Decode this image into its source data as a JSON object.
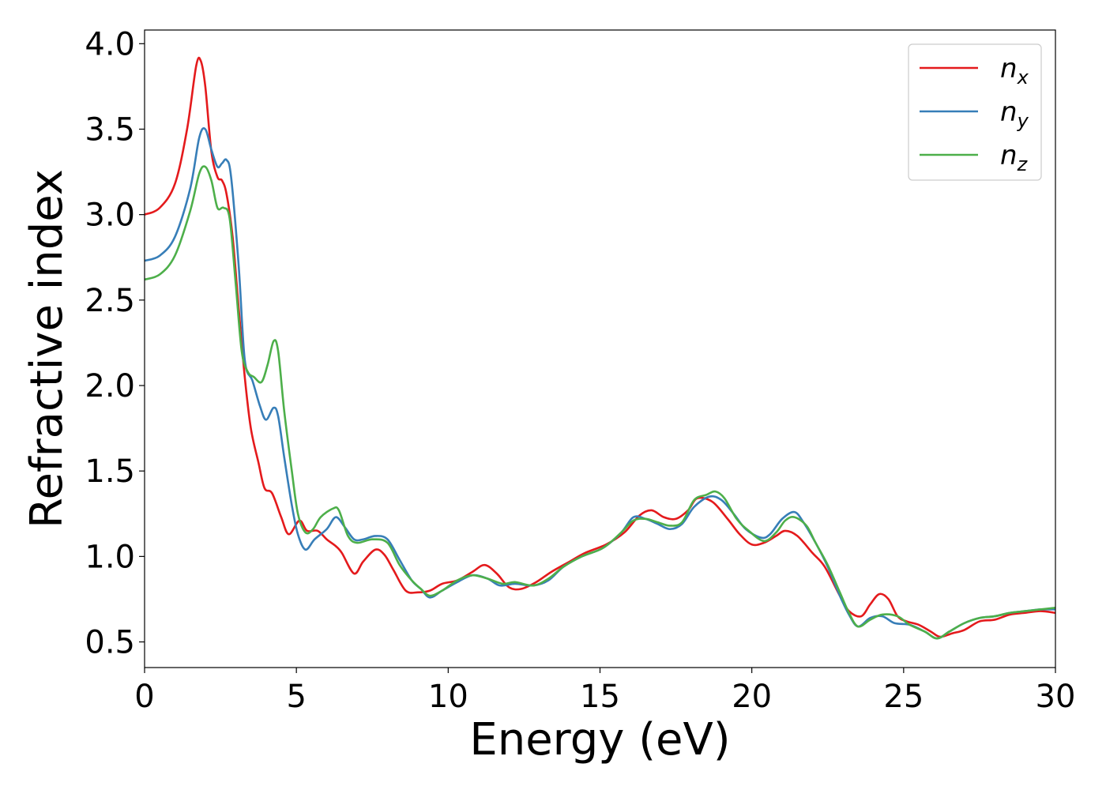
{
  "chart_data": {
    "type": "line",
    "title": "",
    "xlabel": "Energy (eV)",
    "ylabel": "Refractive index",
    "xlim": [
      0,
      30
    ],
    "ylim": [
      0.35,
      4.08
    ],
    "xticks": [
      0,
      5,
      10,
      15,
      20,
      25,
      30
    ],
    "xtick_labels": [
      "0",
      "5",
      "10",
      "15",
      "20",
      "25",
      "30"
    ],
    "yticks": [
      0.5,
      1.0,
      1.5,
      2.0,
      2.5,
      3.0,
      3.5,
      4.0
    ],
    "ytick_labels": [
      "0.5",
      "1.0",
      "1.5",
      "2.0",
      "2.5",
      "3.0",
      "3.5",
      "4.0"
    ],
    "grid": false,
    "legend_position": "top-right",
    "series": [
      {
        "name": "n",
        "subscript": "x",
        "color": "#e41a1c",
        "points": [
          [
            0,
            3.0
          ],
          [
            0.5,
            3.04
          ],
          [
            1.0,
            3.18
          ],
          [
            1.4,
            3.5
          ],
          [
            1.7,
            3.87
          ],
          [
            1.85,
            3.9
          ],
          [
            2.0,
            3.75
          ],
          [
            2.2,
            3.37
          ],
          [
            2.4,
            3.22
          ],
          [
            2.55,
            3.2
          ],
          [
            2.7,
            3.12
          ],
          [
            2.9,
            2.87
          ],
          [
            3.1,
            2.45
          ],
          [
            3.3,
            2.05
          ],
          [
            3.5,
            1.75
          ],
          [
            3.75,
            1.55
          ],
          [
            3.95,
            1.4
          ],
          [
            4.2,
            1.37
          ],
          [
            4.5,
            1.23
          ],
          [
            4.75,
            1.13
          ],
          [
            5.1,
            1.21
          ],
          [
            5.35,
            1.15
          ],
          [
            5.7,
            1.15
          ],
          [
            6.0,
            1.1
          ],
          [
            6.3,
            1.06
          ],
          [
            6.5,
            1.02
          ],
          [
            6.9,
            0.9
          ],
          [
            7.2,
            0.97
          ],
          [
            7.6,
            1.04
          ],
          [
            7.9,
            1.01
          ],
          [
            8.2,
            0.92
          ],
          [
            8.6,
            0.8
          ],
          [
            9.0,
            0.79
          ],
          [
            9.4,
            0.8
          ],
          [
            9.8,
            0.84
          ],
          [
            10.3,
            0.86
          ],
          [
            10.8,
            0.91
          ],
          [
            11.2,
            0.95
          ],
          [
            11.6,
            0.9
          ],
          [
            12.0,
            0.82
          ],
          [
            12.4,
            0.81
          ],
          [
            12.9,
            0.85
          ],
          [
            13.4,
            0.91
          ],
          [
            14.0,
            0.97
          ],
          [
            14.5,
            1.02
          ],
          [
            15.2,
            1.07
          ],
          [
            15.8,
            1.14
          ],
          [
            16.3,
            1.24
          ],
          [
            16.7,
            1.27
          ],
          [
            17.1,
            1.23
          ],
          [
            17.5,
            1.22
          ],
          [
            17.9,
            1.27
          ],
          [
            18.2,
            1.34
          ],
          [
            18.7,
            1.32
          ],
          [
            19.2,
            1.22
          ],
          [
            19.6,
            1.13
          ],
          [
            20.0,
            1.07
          ],
          [
            20.4,
            1.08
          ],
          [
            20.8,
            1.12
          ],
          [
            21.1,
            1.15
          ],
          [
            21.5,
            1.12
          ],
          [
            22.0,
            1.02
          ],
          [
            22.4,
            0.94
          ],
          [
            22.9,
            0.77
          ],
          [
            23.2,
            0.68
          ],
          [
            23.6,
            0.65
          ],
          [
            23.9,
            0.72
          ],
          [
            24.2,
            0.78
          ],
          [
            24.5,
            0.75
          ],
          [
            24.8,
            0.65
          ],
          [
            25.1,
            0.62
          ],
          [
            25.5,
            0.6
          ],
          [
            25.9,
            0.56
          ],
          [
            26.2,
            0.53
          ],
          [
            26.6,
            0.55
          ],
          [
            27.0,
            0.57
          ],
          [
            27.5,
            0.62
          ],
          [
            28.0,
            0.63
          ],
          [
            28.5,
            0.66
          ],
          [
            29.0,
            0.67
          ],
          [
            29.5,
            0.68
          ],
          [
            30.0,
            0.67
          ]
        ]
      },
      {
        "name": "n",
        "subscript": "y",
        "color": "#377eb8",
        "points": [
          [
            0,
            2.73
          ],
          [
            0.5,
            2.76
          ],
          [
            1.0,
            2.87
          ],
          [
            1.5,
            3.15
          ],
          [
            1.8,
            3.45
          ],
          [
            2.0,
            3.5
          ],
          [
            2.2,
            3.38
          ],
          [
            2.4,
            3.28
          ],
          [
            2.55,
            3.3
          ],
          [
            2.7,
            3.32
          ],
          [
            2.85,
            3.22
          ],
          [
            3.1,
            2.7
          ],
          [
            3.3,
            2.15
          ],
          [
            3.55,
            2.03
          ],
          [
            3.8,
            1.88
          ],
          [
            4.0,
            1.8
          ],
          [
            4.25,
            1.87
          ],
          [
            4.4,
            1.82
          ],
          [
            4.6,
            1.58
          ],
          [
            4.85,
            1.3
          ],
          [
            5.05,
            1.13
          ],
          [
            5.3,
            1.04
          ],
          [
            5.6,
            1.1
          ],
          [
            6.0,
            1.16
          ],
          [
            6.3,
            1.23
          ],
          [
            6.6,
            1.17
          ],
          [
            6.9,
            1.1
          ],
          [
            7.2,
            1.1
          ],
          [
            7.6,
            1.12
          ],
          [
            8.0,
            1.1
          ],
          [
            8.4,
            0.98
          ],
          [
            8.8,
            0.86
          ],
          [
            9.1,
            0.81
          ],
          [
            9.4,
            0.76
          ],
          [
            9.8,
            0.8
          ],
          [
            10.3,
            0.85
          ],
          [
            10.8,
            0.89
          ],
          [
            11.3,
            0.87
          ],
          [
            11.7,
            0.83
          ],
          [
            12.2,
            0.84
          ],
          [
            12.8,
            0.83
          ],
          [
            13.3,
            0.86
          ],
          [
            13.8,
            0.94
          ],
          [
            14.4,
            1.0
          ],
          [
            15.1,
            1.05
          ],
          [
            15.7,
            1.14
          ],
          [
            16.1,
            1.23
          ],
          [
            16.5,
            1.22
          ],
          [
            16.9,
            1.19
          ],
          [
            17.3,
            1.16
          ],
          [
            17.7,
            1.19
          ],
          [
            18.1,
            1.29
          ],
          [
            18.6,
            1.35
          ],
          [
            19.0,
            1.33
          ],
          [
            19.4,
            1.25
          ],
          [
            19.8,
            1.16
          ],
          [
            20.3,
            1.11
          ],
          [
            20.6,
            1.13
          ],
          [
            21.0,
            1.22
          ],
          [
            21.4,
            1.26
          ],
          [
            21.7,
            1.2
          ],
          [
            22.1,
            1.08
          ],
          [
            22.5,
            0.94
          ],
          [
            22.9,
            0.77
          ],
          [
            23.2,
            0.66
          ],
          [
            23.5,
            0.59
          ],
          [
            23.9,
            0.64
          ],
          [
            24.3,
            0.65
          ],
          [
            24.7,
            0.61
          ],
          [
            25.2,
            0.6
          ],
          [
            25.7,
            0.56
          ],
          [
            26.1,
            0.52
          ],
          [
            26.5,
            0.56
          ],
          [
            27.0,
            0.61
          ],
          [
            27.5,
            0.64
          ],
          [
            28.0,
            0.65
          ],
          [
            28.5,
            0.67
          ],
          [
            29.0,
            0.68
          ],
          [
            29.5,
            0.69
          ],
          [
            30.0,
            0.69
          ]
        ]
      },
      {
        "name": "n",
        "subscript": "z",
        "color": "#4daf4a",
        "points": [
          [
            0,
            2.62
          ],
          [
            0.5,
            2.65
          ],
          [
            1.0,
            2.76
          ],
          [
            1.5,
            3.02
          ],
          [
            1.8,
            3.24
          ],
          [
            2.0,
            3.28
          ],
          [
            2.2,
            3.2
          ],
          [
            2.4,
            3.04
          ],
          [
            2.6,
            3.04
          ],
          [
            2.8,
            2.98
          ],
          [
            3.0,
            2.6
          ],
          [
            3.2,
            2.2
          ],
          [
            3.4,
            2.08
          ],
          [
            3.6,
            2.05
          ],
          [
            3.85,
            2.02
          ],
          [
            4.05,
            2.12
          ],
          [
            4.25,
            2.26
          ],
          [
            4.4,
            2.2
          ],
          [
            4.6,
            1.85
          ],
          [
            4.85,
            1.5
          ],
          [
            5.05,
            1.25
          ],
          [
            5.3,
            1.14
          ],
          [
            5.55,
            1.16
          ],
          [
            5.8,
            1.23
          ],
          [
            6.2,
            1.28
          ],
          [
            6.4,
            1.27
          ],
          [
            6.7,
            1.12
          ],
          [
            7.0,
            1.08
          ],
          [
            7.5,
            1.1
          ],
          [
            8.0,
            1.08
          ],
          [
            8.4,
            0.95
          ],
          [
            8.8,
            0.86
          ],
          [
            9.1,
            0.81
          ],
          [
            9.4,
            0.77
          ],
          [
            9.8,
            0.8
          ],
          [
            10.3,
            0.86
          ],
          [
            10.8,
            0.89
          ],
          [
            11.3,
            0.87
          ],
          [
            11.8,
            0.84
          ],
          [
            12.2,
            0.85
          ],
          [
            12.8,
            0.83
          ],
          [
            13.3,
            0.87
          ],
          [
            13.8,
            0.94
          ],
          [
            14.4,
            1.0
          ],
          [
            15.1,
            1.05
          ],
          [
            15.7,
            1.14
          ],
          [
            16.1,
            1.21
          ],
          [
            16.5,
            1.22
          ],
          [
            16.9,
            1.2
          ],
          [
            17.3,
            1.18
          ],
          [
            17.7,
            1.2
          ],
          [
            18.1,
            1.33
          ],
          [
            18.5,
            1.36
          ],
          [
            18.8,
            1.38
          ],
          [
            19.1,
            1.34
          ],
          [
            19.5,
            1.22
          ],
          [
            19.9,
            1.15
          ],
          [
            20.4,
            1.09
          ],
          [
            20.8,
            1.14
          ],
          [
            21.1,
            1.21
          ],
          [
            21.4,
            1.23
          ],
          [
            21.8,
            1.18
          ],
          [
            22.1,
            1.08
          ],
          [
            22.5,
            0.95
          ],
          [
            22.9,
            0.79
          ],
          [
            23.2,
            0.67
          ],
          [
            23.5,
            0.59
          ],
          [
            23.9,
            0.63
          ],
          [
            24.3,
            0.66
          ],
          [
            24.8,
            0.65
          ],
          [
            25.2,
            0.6
          ],
          [
            25.7,
            0.56
          ],
          [
            26.1,
            0.52
          ],
          [
            26.5,
            0.56
          ],
          [
            27.0,
            0.61
          ],
          [
            27.5,
            0.64
          ],
          [
            28.0,
            0.65
          ],
          [
            28.5,
            0.67
          ],
          [
            29.0,
            0.68
          ],
          [
            29.5,
            0.69
          ],
          [
            30.0,
            0.7
          ]
        ]
      }
    ]
  }
}
